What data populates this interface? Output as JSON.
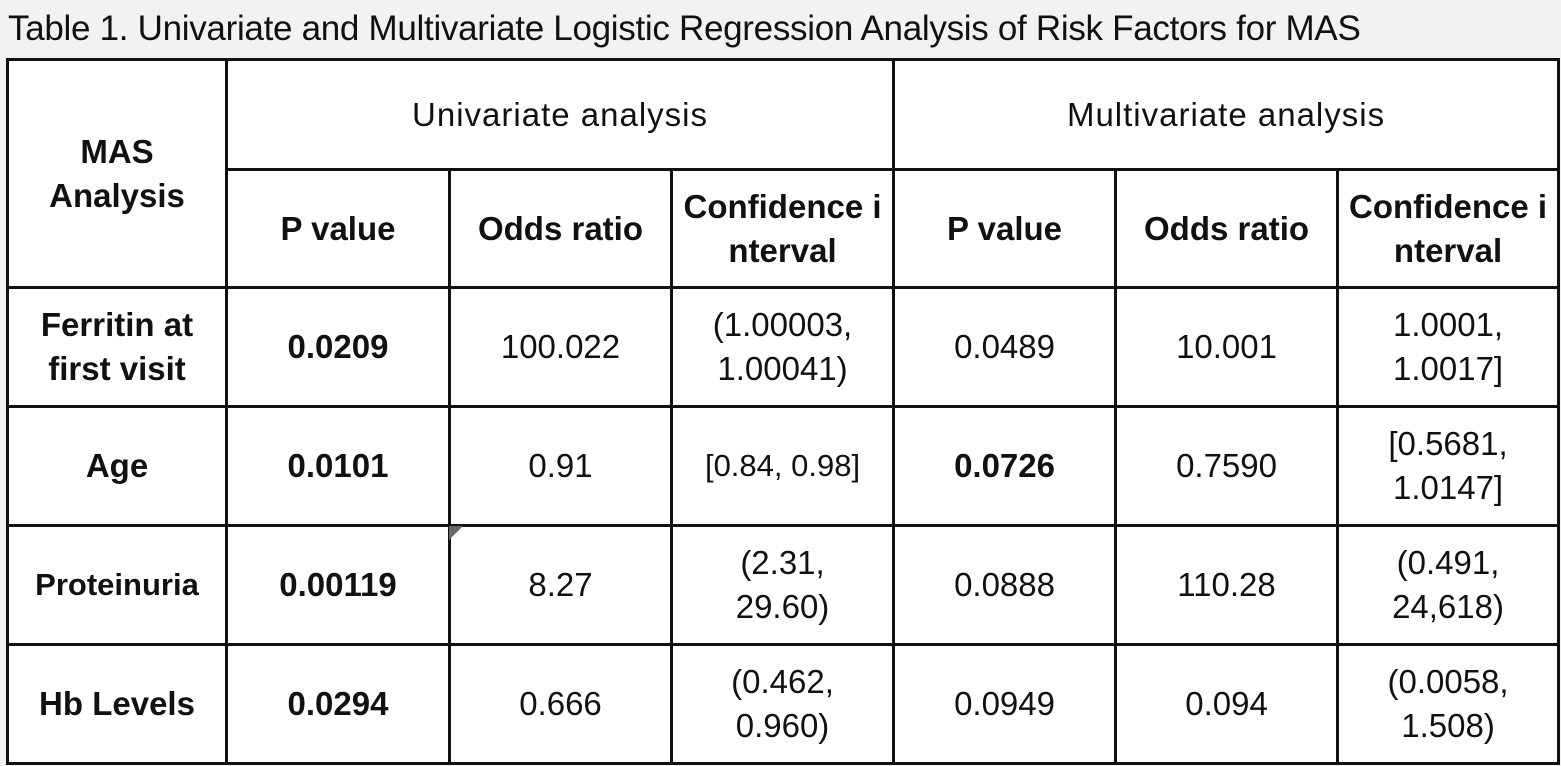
{
  "caption": "Table 1. Univariate and Multivariate Logistic Regression Analysis of Risk Factors for MAS",
  "header": {
    "row_label": "MAS Analysis",
    "groups": [
      "Univariate analysis",
      "Multivariate analysis"
    ],
    "subcolumns": [
      "P value",
      "Odds ratio",
      "Confidence interval",
      "P value",
      "Odds ratio",
      "Confidence interval"
    ]
  },
  "rows": [
    {
      "label": "Ferritin at first visit",
      "uni_p": "0.0209",
      "uni_or": "100.022",
      "uni_ci": "(1.00003, 1.00041)",
      "multi_p": "0.0489",
      "multi_or": "10.001",
      "multi_ci": "1.0001, 1.0017]"
    },
    {
      "label": "Age",
      "uni_p": "0.0101",
      "uni_or": "0.91",
      "uni_ci": "[0.84, 0.98]",
      "multi_p": "0.0726",
      "multi_or": "0.7590",
      "multi_ci": "[0.5681, 1.0147]"
    },
    {
      "label": "Proteinuria",
      "uni_p": "0.00119",
      "uni_or": "8.27",
      "uni_ci": "(2.31, 29.60)",
      "multi_p": "0.0888",
      "multi_or": "110.28",
      "multi_ci": "(0.491, 24,618)"
    },
    {
      "label": "Hb Levels",
      "uni_p": "0.0294",
      "uni_or": "0.666",
      "uni_ci": "(0.462, 0.960)",
      "multi_p": "0.0949",
      "multi_or": "0.094",
      "multi_ci": "(0.0058, 1.508)"
    }
  ]
}
